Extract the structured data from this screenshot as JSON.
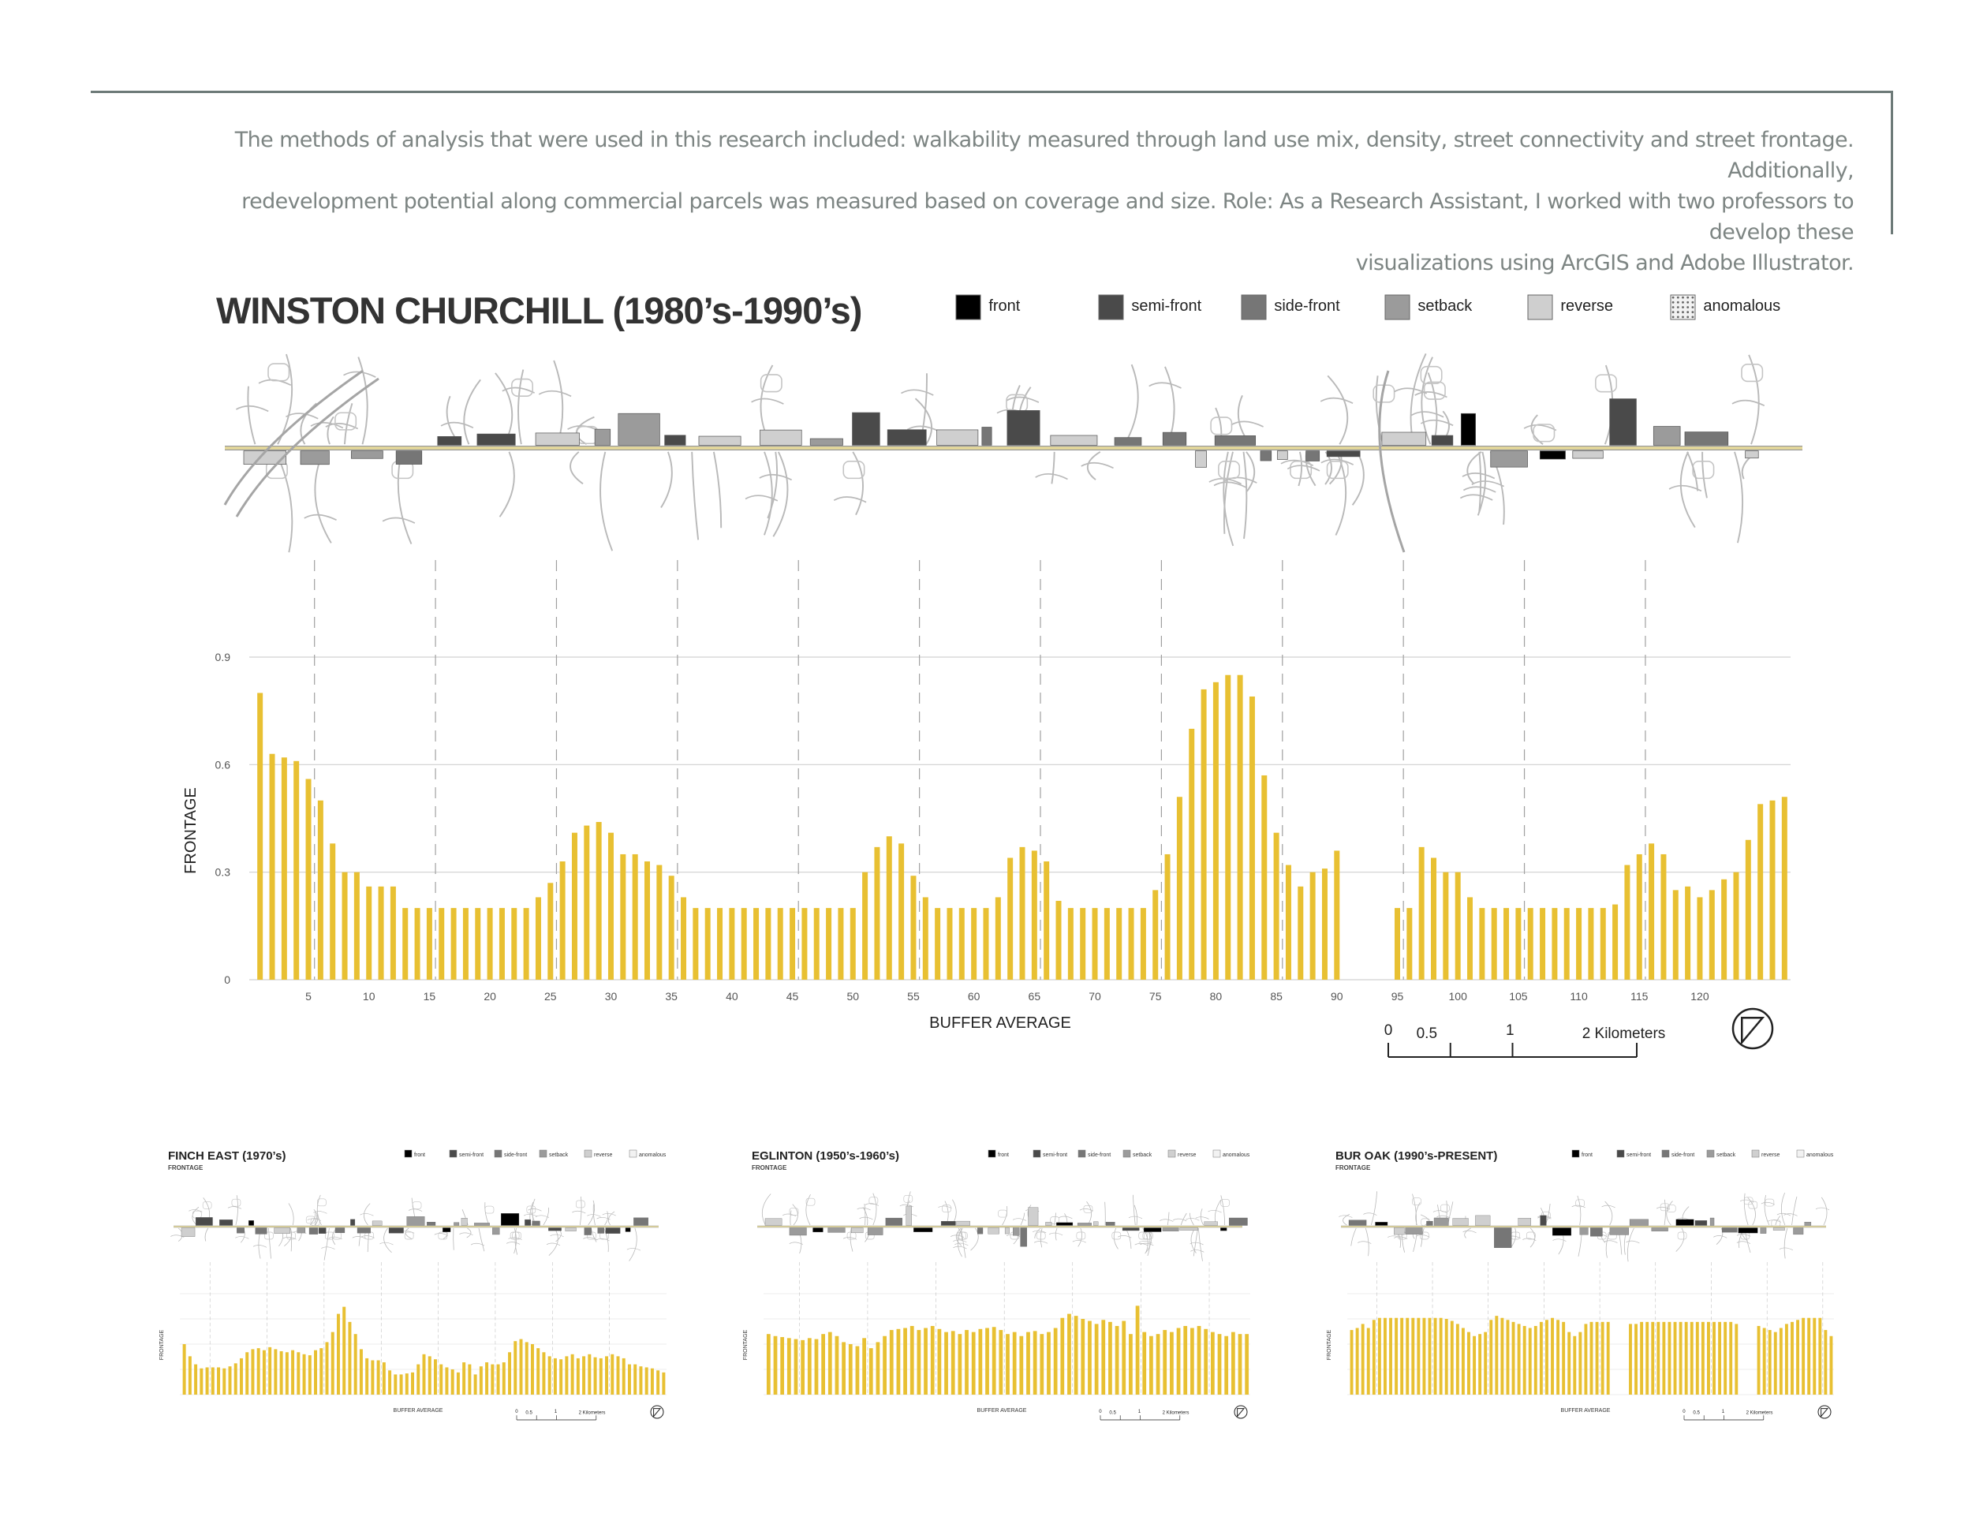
{
  "intro": {
    "line1": "The methods of analysis that were used in this research included: walkability measured through land use mix, density, street connectivity and street frontage. Additionally,",
    "line2": "redevelopment potential along commercial parcels was measured based on coverage and size. Role: As a Research Assistant, I worked with two professors to develop these",
    "line3": "visualizations using ArcGIS and Adobe Illustrator."
  },
  "colors": {
    "bar": "#e8c032",
    "road": "#e6d99a",
    "front": "#000000",
    "semi_front": "#4a4a4a",
    "side_front": "#767676",
    "setback": "#9b9b9b",
    "reverse": "#cfcfcf",
    "anomalous": "#f2f2f2",
    "frame": "#6d7a78",
    "text_gray": "#7d8583"
  },
  "legend": [
    {
      "key": "front",
      "label": "front",
      "color": "#000000"
    },
    {
      "key": "semi_front",
      "label": "semi-front",
      "color": "#4a4a4a"
    },
    {
      "key": "side_front",
      "label": "side-front",
      "color": "#767676"
    },
    {
      "key": "setback",
      "label": "setback",
      "color": "#9b9b9b"
    },
    {
      "key": "reverse",
      "label": "reverse",
      "color": "#cfcfcf"
    },
    {
      "key": "anomalous",
      "label": "anomalous",
      "color": "#f2f2f2"
    }
  ],
  "north_arrow": "north-arrow-icon",
  "chart_data": [
    {
      "type": "bar",
      "title": "WINSTON CHURCHILL (1980’s-1990’s)",
      "xlabel": "BUFFER AVERAGE",
      "ylabel": "FRONTAGE",
      "ylim": [
        0,
        0.9
      ],
      "yticks": [
        "0",
        "0.3",
        "0.6",
        "0.9"
      ],
      "xticks": [
        "5",
        "10",
        "15",
        "20",
        "25",
        "30",
        "35",
        "40",
        "45",
        "50",
        "55",
        "60",
        "65",
        "70",
        "75",
        "80",
        "85",
        "90",
        "95",
        "100",
        "105",
        "110",
        "115",
        "120"
      ],
      "grid": true,
      "legend_position": "top-right",
      "scale_labels": [
        "0",
        "0.5",
        "1",
        "2 Kilometers"
      ],
      "values": [
        0.8,
        0.63,
        0.62,
        0.61,
        0.56,
        0.5,
        0.38,
        0.3,
        0.3,
        0.26,
        0.26,
        0.26,
        0.2,
        0.2,
        0.2,
        0.2,
        0.2,
        0.2,
        0.2,
        0.2,
        0.2,
        0.2,
        0.2,
        0.23,
        0.27,
        0.33,
        0.41,
        0.43,
        0.44,
        0.41,
        0.35,
        0.35,
        0.33,
        0.32,
        0.29,
        0.23,
        0.2,
        0.2,
        0.2,
        0.2,
        0.2,
        0.2,
        0.2,
        0.2,
        0.2,
        0.2,
        0.2,
        0.2,
        0.2,
        0.2,
        0.3,
        0.37,
        0.4,
        0.38,
        0.29,
        0.23,
        0.2,
        0.2,
        0.2,
        0.2,
        0.2,
        0.23,
        0.34,
        0.37,
        0.36,
        0.33,
        0.22,
        0.2,
        0.2,
        0.2,
        0.2,
        0.2,
        0.2,
        0.2,
        0.25,
        0.35,
        0.51,
        0.7,
        0.81,
        0.83,
        0.85,
        0.85,
        0.79,
        0.57,
        0.41,
        0.32,
        0.26,
        0.3,
        0.31,
        0.36,
        0,
        0,
        0,
        0,
        0.2,
        0.2,
        0.37,
        0.34,
        0.3,
        0.3,
        0.23,
        0.2,
        0.2,
        0.2,
        0.2,
        0.2,
        0.2,
        0.2,
        0.2,
        0.2,
        0.2,
        0.2,
        0.21,
        0.32,
        0.35,
        0.38,
        0.35,
        0.25,
        0.26,
        0.23,
        0.25,
        0.28,
        0.3,
        0.39,
        0.49,
        0.5,
        0.51
      ]
    },
    {
      "type": "bar",
      "title": "FINCH EAST (1970’s)",
      "subtitle": "FRONTAGE",
      "xlabel": "BUFFER AVERAGE",
      "ylabel": "FRONTAGE",
      "ylim": [
        0,
        1
      ],
      "scale_labels": [
        "0",
        "0.5",
        "1",
        "2 Kilometers"
      ],
      "values": [
        0.5,
        0.38,
        0.3,
        0.26,
        0.27,
        0.27,
        0.27,
        0.26,
        0.28,
        0.31,
        0.36,
        0.42,
        0.45,
        0.46,
        0.44,
        0.47,
        0.45,
        0.43,
        0.42,
        0.44,
        0.42,
        0.4,
        0.39,
        0.44,
        0.46,
        0.52,
        0.62,
        0.8,
        0.87,
        0.72,
        0.6,
        0.45,
        0.36,
        0.34,
        0.34,
        0.32,
        0.24,
        0.2,
        0.2,
        0.21,
        0.22,
        0.3,
        0.4,
        0.38,
        0.35,
        0.3,
        0.27,
        0.25,
        0.22,
        0.32,
        0.3,
        0.2,
        0.28,
        0.32,
        0.3,
        0.3,
        0.32,
        0.42,
        0.53,
        0.55,
        0.52,
        0.5,
        0.46,
        0.42,
        0.38,
        0.36,
        0.35,
        0.38,
        0.4,
        0.36,
        0.38,
        0.4,
        0.37,
        0.36,
        0.38,
        0.4,
        0.38,
        0.36,
        0.3,
        0.3,
        0.28,
        0.27,
        0.26,
        0.24,
        0.22
      ]
    },
    {
      "type": "bar",
      "title": "EGLINTON (1950’s-1960’s)",
      "subtitle": "FRONTAGE",
      "xlabel": "BUFFER AVERAGE",
      "ylabel": "FRONTAGE",
      "ylim": [
        0,
        1
      ],
      "scale_labels": [
        "0",
        "0.5",
        "1",
        "2 Kilometers"
      ],
      "values": [
        0.6,
        0.58,
        0.57,
        0.56,
        0.55,
        0.54,
        0.56,
        0.55,
        0.6,
        0.62,
        0.58,
        0.52,
        0.5,
        0.48,
        0.56,
        0.46,
        0.52,
        0.58,
        0.64,
        0.65,
        0.66,
        0.68,
        0.64,
        0.66,
        0.68,
        0.65,
        0.62,
        0.63,
        0.6,
        0.64,
        0.62,
        0.65,
        0.66,
        0.67,
        0.64,
        0.6,
        0.62,
        0.58,
        0.62,
        0.63,
        0.6,
        0.62,
        0.66,
        0.76,
        0.8,
        0.78,
        0.75,
        0.73,
        0.7,
        0.74,
        0.72,
        0.68,
        0.73,
        0.6,
        0.88,
        0.62,
        0.58,
        0.6,
        0.64,
        0.62,
        0.66,
        0.68,
        0.66,
        0.68,
        0.65,
        0.62,
        0.6,
        0.58,
        0.62,
        0.6,
        0.6
      ]
    },
    {
      "type": "bar",
      "title": "BUR OAK (1990’s-PRESENT)",
      "subtitle": "FRONTAGE",
      "xlabel": "BUFFER AVERAGE",
      "ylabel": "FRONTAGE",
      "ylim": [
        0,
        1
      ],
      "scale_labels": [
        "0",
        "0.5",
        "1",
        "2 Kilometers"
      ],
      "values": [
        0.64,
        0.66,
        0.7,
        0.66,
        0.74,
        0.76,
        0.76,
        0.76,
        0.76,
        0.76,
        0.76,
        0.76,
        0.76,
        0.76,
        0.76,
        0.76,
        0.76,
        0.75,
        0.73,
        0.7,
        0.66,
        0.62,
        0.58,
        0.6,
        0.62,
        0.74,
        0.78,
        0.76,
        0.74,
        0.72,
        0.7,
        0.68,
        0.66,
        0.68,
        0.72,
        0.74,
        0.76,
        0.74,
        0.72,
        0.62,
        0.58,
        0.62,
        0.7,
        0.72,
        0.72,
        0.72,
        0.72,
        0,
        0,
        0,
        0.7,
        0.7,
        0.72,
        0.72,
        0.72,
        0.72,
        0.72,
        0.72,
        0.72,
        0.72,
        0.72,
        0.72,
        0.72,
        0.72,
        0.72,
        0.72,
        0.72,
        0.72,
        0.72,
        0.7,
        0,
        0,
        0,
        0.68,
        0.66,
        0.64,
        0.62,
        0.66,
        0.7,
        0.72,
        0.74,
        0.76,
        0.76,
        0.76,
        0.76,
        0.64,
        0.58
      ]
    }
  ]
}
